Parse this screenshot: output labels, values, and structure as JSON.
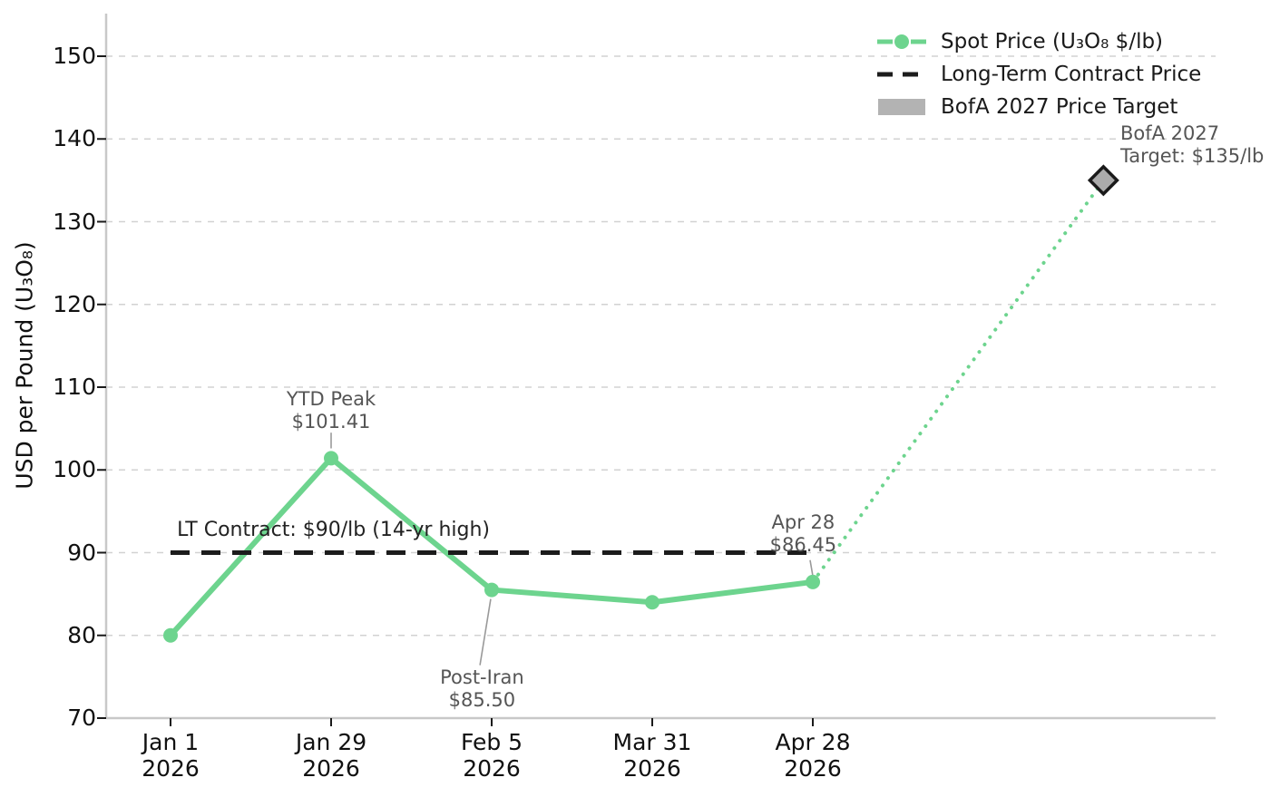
{
  "figure": {
    "ylabel": "USD per Pound (U₃O₈)"
  },
  "legend": {
    "position": "upper-right",
    "items": [
      {
        "label": "Spot Price (U₃O₈ $/lb)",
        "key": "line-with-marker",
        "color": "#6dd48e"
      },
      {
        "label": "Long-Term Contract Price",
        "key": "dashed-line",
        "color": "#1c1c1c"
      },
      {
        "label": "BofA 2027 Price Target",
        "key": "patch",
        "color": "#b3b3b3"
      }
    ]
  },
  "chart_data": {
    "type": "line",
    "title": "",
    "xlabel": "",
    "ylabel": "USD per Pound (U₃O₈)",
    "ylim": [
      70,
      155.2
    ],
    "yticks": [
      70,
      80,
      90,
      100,
      110,
      120,
      130,
      140,
      150
    ],
    "grid": "horizontal-dashed",
    "legend_position": "upper right",
    "xticks": [
      {
        "x": 0,
        "lines": [
          "Jan 1",
          "2026"
        ]
      },
      {
        "x": 1,
        "lines": [
          "Jan 29",
          "2026"
        ]
      },
      {
        "x": 2,
        "lines": [
          "Feb 5",
          "2026"
        ]
      },
      {
        "x": 3,
        "lines": [
          "Mar 31",
          "2026"
        ]
      },
      {
        "x": 4,
        "lines": [
          "Apr 28",
          "2026"
        ]
      }
    ],
    "series": [
      {
        "name": "Spot Price (U₃O₈ $/lb)",
        "type": "line-markers",
        "color": "#6dd48e",
        "x": [
          0,
          1,
          2,
          3,
          4
        ],
        "values": [
          80.0,
          101.41,
          85.5,
          84.0,
          86.45
        ]
      },
      {
        "name": "Long-Term Contract Price",
        "type": "hline-dashed",
        "color": "#1c1c1c",
        "value": 90,
        "x_start": 0,
        "x_end": 4.005
      },
      {
        "name": "Projection to BofA target",
        "type": "dotted-line",
        "color": "#6dd48e",
        "x": [
          4,
          5.81
        ],
        "values": [
          86.45,
          135
        ]
      },
      {
        "name": "BofA 2027 Price Target",
        "type": "diamond-marker",
        "fill": "#ababab",
        "edge": "#1a1a1a",
        "x": 5.81,
        "value": 135
      }
    ],
    "annotations": [
      {
        "id": "ytd-peak",
        "lines": [
          "YTD Peak",
          "$101.41"
        ],
        "x": 1.0,
        "value": 107.15,
        "align": "center",
        "color": "#555555",
        "fontsize": 21,
        "connector": {
          "x1": 1.0,
          "v1": 104.5,
          "x2": 1.0,
          "v2": 102.6
        }
      },
      {
        "id": "post-iran",
        "lines": [
          "Post-Iran",
          "$85.50"
        ],
        "x": 1.94,
        "value": 73.5,
        "align": "center",
        "color": "#555555",
        "fontsize": 21,
        "connector": {
          "x1": 1.994,
          "v1": 84.4,
          "x2": 1.927,
          "v2": 76.4
        }
      },
      {
        "id": "apr-28",
        "lines": [
          "Apr 28",
          "$86.45"
        ],
        "x": 3.94,
        "value": 92.2,
        "align": "center",
        "color": "#555555",
        "fontsize": 21,
        "connector": {
          "x1": 3.983,
          "v1": 89.1,
          "x2": 3.999,
          "v2": 87.3
        }
      },
      {
        "id": "bofa-target",
        "lines": [
          "BofA 2027",
          "Target: $135/lb"
        ],
        "x": 5.915,
        "value": 139.3,
        "align": "left",
        "color": "#555555",
        "fontsize": 21
      },
      {
        "id": "lt-contract",
        "lines": [
          "LT Contract: $90/lb (14-yr high)"
        ],
        "x": 0.04,
        "value": 92.65,
        "align": "left",
        "color": "#222222",
        "fontsize": 22
      }
    ]
  }
}
